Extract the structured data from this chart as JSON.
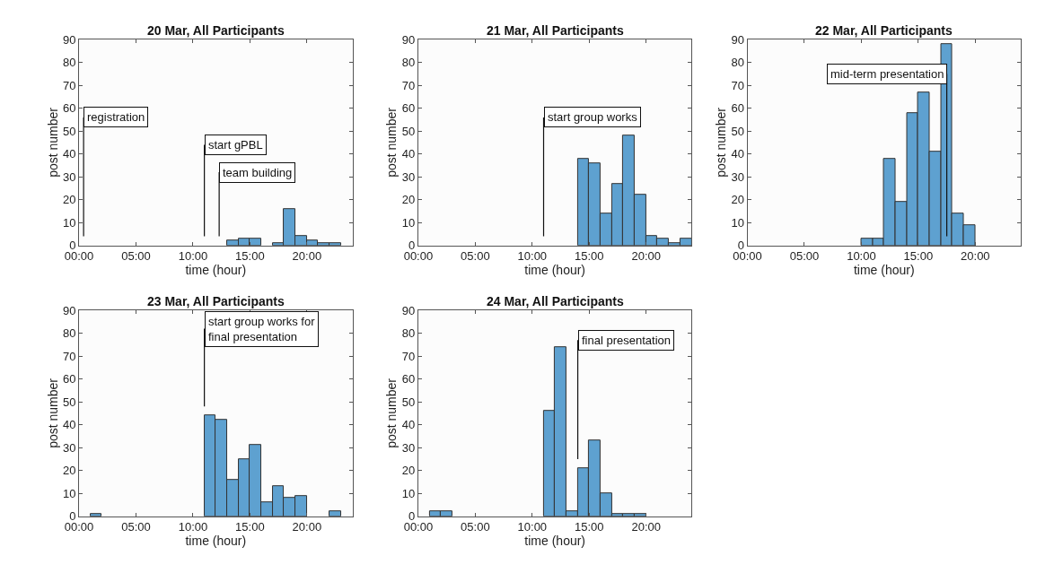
{
  "chart_data": [
    {
      "type": "histogram",
      "title": "20 Mar, All Participants",
      "xlabel": "time (hour)",
      "ylabel": "post number",
      "color": "#5ea1d0",
      "bins": [
        13,
        14,
        15,
        16,
        17,
        18,
        19,
        20,
        21,
        22,
        23
      ],
      "values": [
        2,
        3,
        3,
        0,
        1,
        16,
        4,
        2,
        1,
        1
      ],
      "xlim": [
        0,
        24
      ],
      "xticks": [
        {
          "value": 0,
          "label": "00:00"
        },
        {
          "value": 5,
          "label": "05:00"
        },
        {
          "value": 10,
          "label": "10:00"
        },
        {
          "value": 15,
          "label": "15:00"
        },
        {
          "value": 20,
          "label": "20:00"
        }
      ],
      "ylim": [
        0,
        90
      ],
      "yticks": [
        0,
        10,
        20,
        30,
        40,
        50,
        60,
        70,
        80,
        90
      ],
      "ref_lines": [
        {
          "axis": "x",
          "value": 0.4,
          "label": "registration"
        },
        {
          "axis": "x",
          "value": 11,
          "label": "start gPBL"
        },
        {
          "axis": "x",
          "value": 12.3,
          "label": "team building"
        }
      ]
    },
    {
      "type": "histogram",
      "title": "21 Mar, All Participants",
      "xlabel": "time (hour)",
      "ylabel": "post number",
      "color": "#5ea1d0",
      "bins": [
        14,
        15,
        16,
        17,
        18,
        19,
        20,
        21,
        22,
        23,
        24
      ],
      "values": [
        38,
        36,
        14,
        27,
        48,
        22,
        4,
        3,
        1,
        3
      ],
      "xlim": [
        0,
        24
      ],
      "xticks": [
        {
          "value": 0,
          "label": "00:00"
        },
        {
          "value": 5,
          "label": "05:00"
        },
        {
          "value": 10,
          "label": "10:00"
        },
        {
          "value": 15,
          "label": "15:00"
        },
        {
          "value": 20,
          "label": "20:00"
        }
      ],
      "ylim": [
        0,
        90
      ],
      "yticks": [
        0,
        10,
        20,
        30,
        40,
        50,
        60,
        70,
        80,
        90
      ],
      "ref_lines": [
        {
          "axis": "x",
          "value": 11,
          "label": "start group works"
        }
      ]
    },
    {
      "type": "histogram",
      "title": "22 Mar, All Participants",
      "xlabel": "time (hour)",
      "ylabel": "post number",
      "color": "#5ea1d0",
      "bins": [
        10,
        11,
        12,
        13,
        14,
        15,
        16,
        17,
        18,
        19,
        20
      ],
      "values": [
        3,
        3,
        38,
        19,
        58,
        67,
        41,
        88,
        14,
        9
      ],
      "xlim": [
        0,
        24
      ],
      "xticks": [
        {
          "value": 0,
          "label": "00:00"
        },
        {
          "value": 5,
          "label": "05:00"
        },
        {
          "value": 10,
          "label": "10:00"
        },
        {
          "value": 15,
          "label": "15:00"
        },
        {
          "value": 20,
          "label": "20:00"
        }
      ],
      "ylim": [
        0,
        90
      ],
      "yticks": [
        0,
        10,
        20,
        30,
        40,
        50,
        60,
        70,
        80,
        90
      ],
      "ref_lines": [
        {
          "axis": "x",
          "value": 17.5,
          "label": "mid-term presentation"
        }
      ]
    },
    {
      "type": "histogram",
      "title": "23 Mar, All Participants",
      "xlabel": "time (hour)",
      "ylabel": "post number",
      "color": "#5ea1d0",
      "bins": [
        1,
        2,
        3,
        4,
        5,
        6,
        7,
        8,
        9,
        10,
        11,
        12,
        13,
        14,
        15,
        16,
        17,
        18,
        19,
        20,
        21,
        22,
        23
      ],
      "values": [
        1,
        0,
        0,
        0,
        0,
        0,
        0,
        0,
        0,
        0,
        44,
        42,
        16,
        25,
        31,
        6,
        13,
        8,
        9,
        0,
        0,
        2
      ],
      "xlim": [
        0,
        24
      ],
      "xticks": [
        {
          "value": 0,
          "label": "00:00"
        },
        {
          "value": 5,
          "label": "05:00"
        },
        {
          "value": 10,
          "label": "10:00"
        },
        {
          "value": 15,
          "label": "15:00"
        },
        {
          "value": 20,
          "label": "20:00"
        }
      ],
      "ylim": [
        0,
        90
      ],
      "yticks": [
        0,
        10,
        20,
        30,
        40,
        50,
        60,
        70,
        80,
        90
      ],
      "ref_lines": [
        {
          "axis": "x",
          "value": 11,
          "label": "start group works for\nfinal presentation"
        }
      ]
    },
    {
      "type": "histogram",
      "title": "24 Mar, All Participants",
      "xlabel": "time (hour)",
      "ylabel": "post number",
      "color": "#5ea1d0",
      "bins": [
        1,
        2,
        3,
        4,
        5,
        6,
        7,
        8,
        9,
        10,
        11,
        12,
        13,
        14,
        15,
        16,
        17,
        18,
        19,
        20
      ],
      "values": [
        2,
        2,
        0,
        0,
        0,
        0,
        0,
        0,
        0,
        0,
        46,
        74,
        2,
        21,
        33,
        10,
        1,
        1,
        1
      ],
      "xlim": [
        0,
        24
      ],
      "xticks": [
        {
          "value": 0,
          "label": "00:00"
        },
        {
          "value": 5,
          "label": "05:00"
        },
        {
          "value": 10,
          "label": "10:00"
        },
        {
          "value": 15,
          "label": "15:00"
        },
        {
          "value": 20,
          "label": "20:00"
        }
      ],
      "ylim": [
        0,
        90
      ],
      "yticks": [
        0,
        10,
        20,
        30,
        40,
        50,
        60,
        70,
        80,
        90
      ],
      "ref_lines": [
        {
          "axis": "x",
          "value": 14,
          "label": "final presentation"
        }
      ]
    }
  ]
}
